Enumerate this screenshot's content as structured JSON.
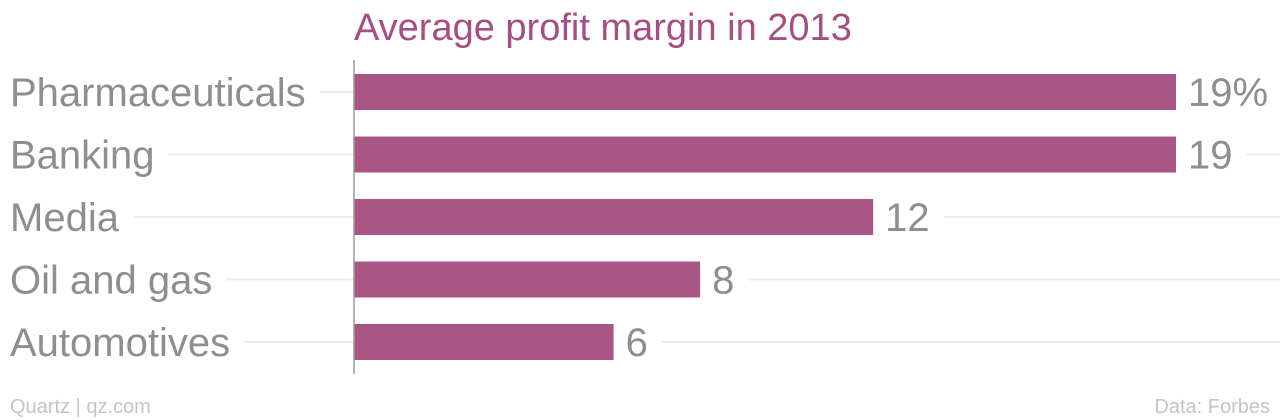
{
  "chart_data": {
    "type": "bar",
    "orientation": "horizontal",
    "title": "Average profit margin in 2013",
    "categories": [
      "Pharmaceuticals",
      "Banking",
      "Media",
      "Oil and gas",
      "Automotives"
    ],
    "values": [
      19,
      19,
      12,
      8,
      6
    ],
    "value_labels": [
      "19%",
      "19",
      "12",
      "8",
      "6"
    ],
    "unit": "%",
    "xlim": [
      0,
      19
    ],
    "grid": true,
    "legend": "none",
    "colors": {
      "bar": "#a85585",
      "title": "#a64e83",
      "label": "#8e8e8e",
      "grid": "#ececec",
      "axis": "#9a9a9a",
      "footer": "#c4c4c4"
    }
  },
  "footer": {
    "credit": "Quartz | qz.com",
    "source": "Data: Forbes"
  }
}
